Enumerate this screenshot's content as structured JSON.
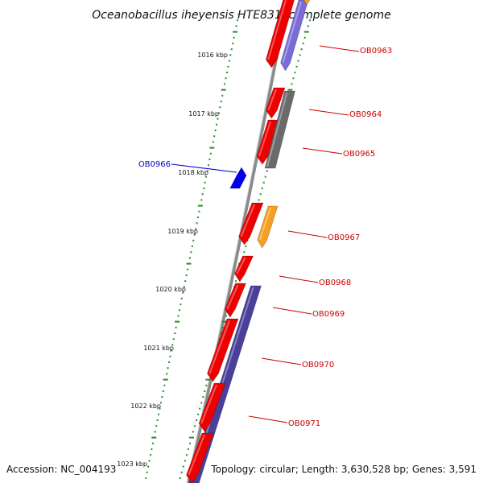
{
  "title": "Oceanobacillus iheyensis HTE831, complete genome",
  "footer": {
    "accession": "Accession: NC_004193",
    "topology": "Topology: circular; Length: 3,630,528 bp; Genes: 3,591"
  },
  "colors": {
    "backbone": "#8a8a8a",
    "tick": "#2a8a2a",
    "label_forward": "#cc0000",
    "label_reverse": "#0000cc",
    "red": "#ee0000",
    "lavender": "#7a6cd8",
    "gray": "#6a6a6a",
    "orange": "#f5a020",
    "navy": "#4a3f9a",
    "blue": "#0000ee"
  },
  "ruler": [
    "1016 kbp",
    "1017 kbp",
    "1018 kbp",
    "1019 kbp",
    "1020 kbp",
    "1021 kbp",
    "1022 kbp",
    "1023 kbp"
  ],
  "gene_labels": [
    "OB0963",
    "OB0964",
    "OB0965",
    "OB0966",
    "OB0967",
    "OB0968",
    "OB0969",
    "OB0970",
    "OB0971"
  ]
}
